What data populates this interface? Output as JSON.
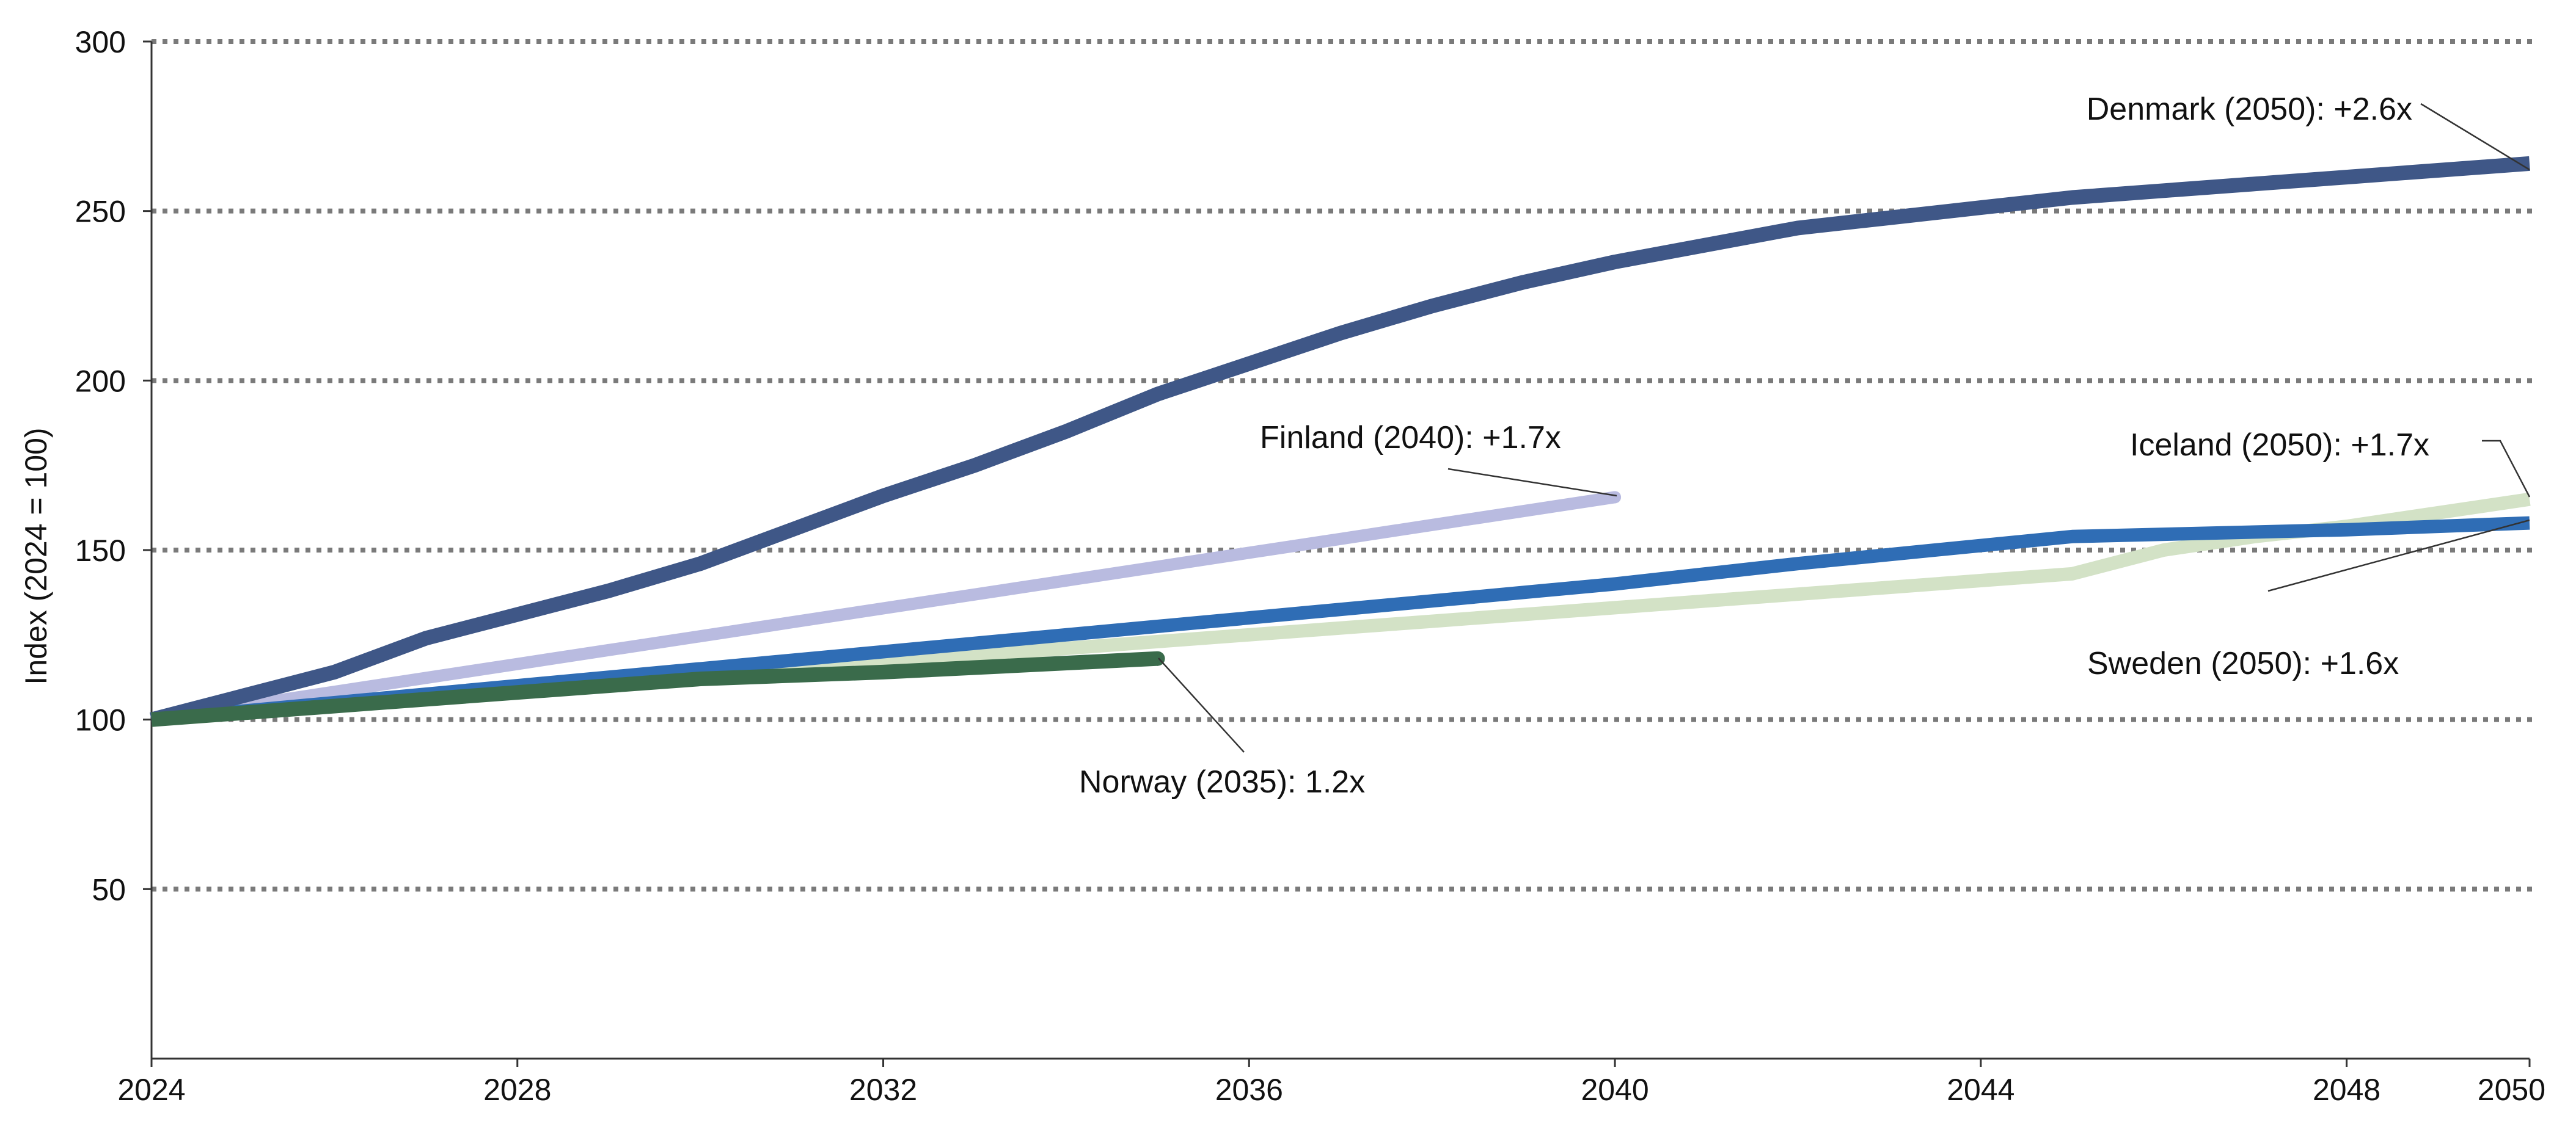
{
  "chart_data": {
    "type": "line",
    "title": "",
    "xlabel": "",
    "ylabel": "Index (2024 = 100)",
    "xlim": [
      2024,
      2050
    ],
    "ylim": [
      0,
      300
    ],
    "x_ticks": [
      2024,
      2028,
      2032,
      2036,
      2040,
      2044,
      2048,
      2050
    ],
    "y_ticks": [
      50,
      100,
      150,
      200,
      250,
      300
    ],
    "grid": "horizontal dotted",
    "legend": "none (direct annotations)",
    "series": [
      {
        "name": "Iceland",
        "color": "#d3e2c6",
        "x": [
          2024,
          2025,
          2026,
          2027,
          2028,
          2029,
          2030,
          2031,
          2032,
          2033,
          2034,
          2035,
          2036,
          2037,
          2038,
          2039,
          2040,
          2041,
          2042,
          2043,
          2044,
          2045,
          2046,
          2047,
          2048,
          2049,
          2050
        ],
        "values": [
          100,
          103,
          105,
          107,
          109,
          111,
          113,
          115,
          117,
          119,
          121,
          123,
          125,
          127,
          129,
          131,
          133,
          135,
          137,
          139,
          141,
          143,
          150,
          154,
          157,
          161,
          165
        ]
      },
      {
        "name": "Finland",
        "color": "#b9bbe0",
        "x": [
          2024,
          2025,
          2026,
          2027,
          2028,
          2029,
          2030,
          2031,
          2032,
          2033,
          2034,
          2035,
          2036,
          2037,
          2038,
          2039,
          2040
        ],
        "values": [
          100,
          104.1,
          108.2,
          112.3,
          116.4,
          120.5,
          124.6,
          128.7,
          132.8,
          136.9,
          141,
          145.1,
          149.2,
          153.3,
          157.4,
          161.5,
          165.6
        ]
      },
      {
        "name": "Sweden",
        "color": "#2f6db5",
        "x": [
          2024,
          2026,
          2028,
          2030,
          2032,
          2034,
          2036,
          2038,
          2040,
          2042,
          2045,
          2048,
          2050
        ],
        "values": [
          100,
          105,
          110,
          115,
          120,
          125,
          130,
          135,
          140,
          146,
          154,
          156,
          158
        ]
      },
      {
        "name": "Denmark",
        "color": "#3f5787",
        "x": [
          2024,
          2025,
          2026,
          2027,
          2028,
          2029,
          2030,
          2031,
          2032,
          2033,
          2034,
          2035,
          2036,
          2037,
          2038,
          2039,
          2040,
          2041,
          2042,
          2043,
          2044,
          2045,
          2046,
          2047,
          2048,
          2049,
          2050
        ],
        "values": [
          100,
          107,
          114,
          124,
          131,
          138,
          146,
          156,
          166,
          175,
          185,
          196,
          205,
          214,
          222,
          229,
          235,
          240,
          245,
          248,
          251,
          254,
          256,
          258,
          260,
          262,
          264
        ]
      },
      {
        "name": "Norway",
        "color": "#3a6b4b",
        "x": [
          2024,
          2026,
          2028,
          2030,
          2032,
          2035
        ],
        "values": [
          100,
          104,
          108,
          112,
          114,
          118
        ]
      }
    ],
    "annotations": [
      {
        "series": "Denmark",
        "text": "Denmark (2050): +2.6x",
        "x": 2050,
        "y": 264
      },
      {
        "series": "Finland",
        "text": "Finland (2040): +1.7x",
        "x": 2040,
        "y": 165.6
      },
      {
        "series": "Iceland",
        "text": "Iceland (2050): +1.7x",
        "x": 2050,
        "y": 165
      },
      {
        "series": "Sweden",
        "text": "Sweden (2050): +1.6x",
        "x": 2050,
        "y": 158
      },
      {
        "series": "Norway",
        "text": "Norway (2035): 1.2x",
        "x": 2035,
        "y": 118
      }
    ]
  }
}
